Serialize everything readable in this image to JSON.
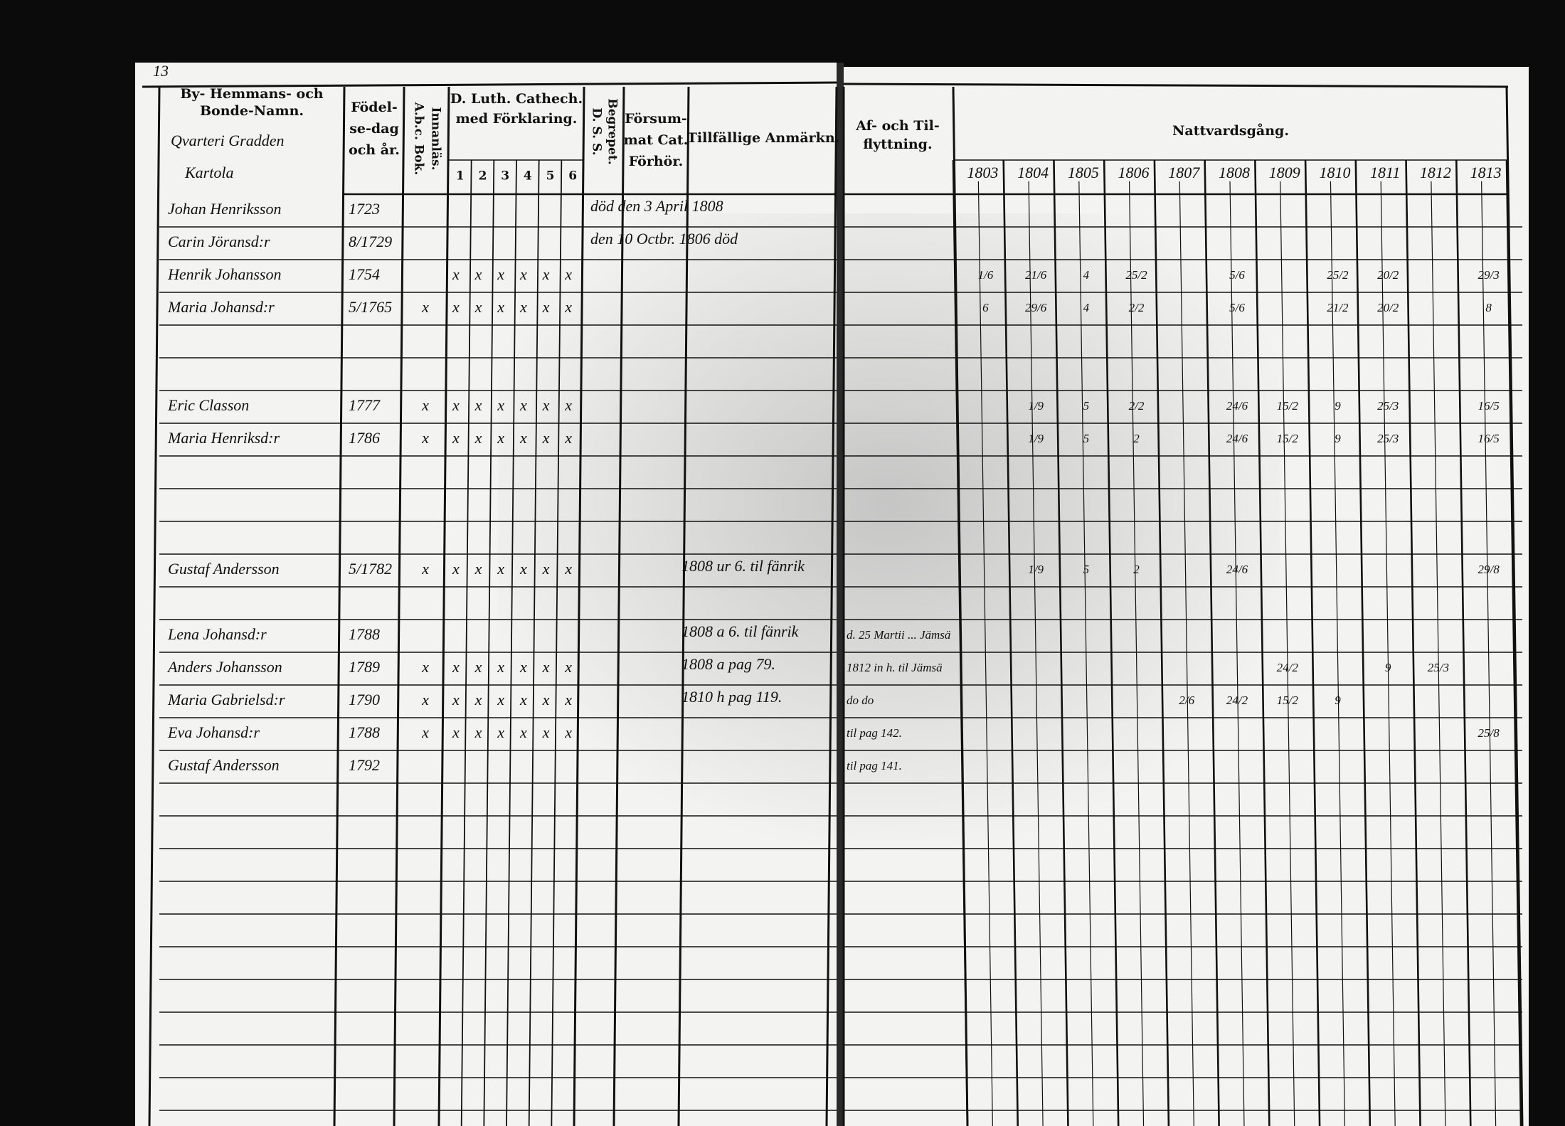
{
  "page_number": "13",
  "left_page": {
    "name_header": [
      "By- Hemmans- och",
      "Bonde-Namn."
    ],
    "birth_header": [
      "Födel-",
      "se-dag",
      "och år."
    ],
    "abc_header": [
      "A.b.c. Bok.",
      "Innanläs."
    ],
    "catechism_header": [
      "D. Luth. Cathech.",
      "med Förklaring."
    ],
    "catechism_parts": [
      "1",
      "2",
      "3",
      "4",
      "5",
      "6"
    ],
    "dss_header": [
      "D. S. S.",
      "Begrepet."
    ],
    "missed_header": [
      "Försum-",
      "mat Cat.",
      "Förhör."
    ],
    "remarks_header": "Tillfällige Anmärkn.",
    "village": "Qvarteri Gradden",
    "farm": "Kartola",
    "rows": [
      {
        "name": "Johan Henriksson",
        "born": "1723",
        "abc": "",
        "catechism": [
          "",
          "",
          "",
          "",
          "",
          ""
        ],
        "note": "död den 3 April 1808"
      },
      {
        "name": "Carin Jöransd:r",
        "born": "8/1729",
        "abc": "",
        "catechism": [
          "",
          "",
          "",
          "",
          "",
          ""
        ],
        "note": "den 10 Octbr. 1806 död"
      },
      {
        "name": "Henrik Johansson",
        "born": "1754",
        "abc": "",
        "catechism": [
          "x",
          "x",
          "x",
          "x",
          "x",
          "x"
        ],
        "note": ""
      },
      {
        "name": "Maria Johansd:r",
        "born": "5/1765",
        "abc": "x",
        "catechism": [
          "x",
          "x",
          "x",
          "x",
          "x",
          "x"
        ],
        "note": ""
      },
      {
        "name": "Eric Classon",
        "born": "1777",
        "abc": "x",
        "catechism": [
          "x",
          "x",
          "x",
          "x",
          "x",
          "x"
        ],
        "note": ""
      },
      {
        "name": "Maria Henriksd:r",
        "born": "1786",
        "abc": "x",
        "catechism": [
          "x",
          "x",
          "x",
          "x",
          "x",
          "x"
        ],
        "note": ""
      },
      {
        "name": "Gustaf Andersson",
        "born": "5/1782",
        "abc": "x",
        "catechism": [
          "x",
          "x",
          "x",
          "x",
          "x",
          "x"
        ],
        "note": "1808 ur 6. til fänrik"
      },
      {
        "name": "Lena Johansd:r",
        "born": "1788",
        "abc": "",
        "catechism": [
          "",
          "",
          "",
          "",
          "",
          ""
        ],
        "note": "1808 a 6. til fänrik"
      },
      {
        "name": "Anders Johansson",
        "born": "1789",
        "abc": "x",
        "catechism": [
          "x",
          "x",
          "x",
          "x",
          "x",
          "x"
        ],
        "note": "1808 a pag 79."
      },
      {
        "name": "Maria Gabrielsd:r",
        "born": "1790",
        "abc": "x",
        "catechism": [
          "x",
          "x",
          "x",
          "x",
          "x",
          "x"
        ],
        "note": "1810 h pag 119."
      },
      {
        "name": "Eva Johansd:r",
        "born": "1788",
        "abc": "x",
        "catechism": [
          "x",
          "x",
          "x",
          "x",
          "x",
          "x"
        ],
        "note": ""
      },
      {
        "name": "Gustaf Andersson",
        "born": "1792",
        "abc": "",
        "catechism": [
          "",
          "",
          "",
          "",
          "",
          ""
        ],
        "note": ""
      }
    ]
  },
  "right_page": {
    "moving_header": [
      "Af- och Til-",
      "flyttning."
    ],
    "communion_header": "Nattvardsgång.",
    "years": [
      "1803",
      "1804",
      "1805",
      "1806",
      "1807",
      "1808",
      "1809",
      "1810",
      "1811",
      "1812",
      "1813"
    ],
    "rows": [
      {
        "moving": "",
        "communion": [
          null,
          null,
          null,
          null,
          null,
          null,
          null,
          null,
          null,
          null,
          null
        ]
      },
      {
        "moving": "",
        "communion": [
          null,
          null,
          null,
          null,
          null,
          null,
          null,
          null,
          null,
          null,
          null
        ]
      },
      {
        "moving": "",
        "communion": [
          "1/6",
          "21/6",
          "4",
          "25/2",
          null,
          "5/6",
          null,
          "25/2",
          "20/2",
          null,
          "29/3"
        ]
      },
      {
        "moving": "",
        "communion": [
          "6",
          "29/6",
          "4",
          "2/2",
          null,
          "5/6",
          null,
          "21/2",
          "20/2",
          null,
          "8"
        ]
      },
      {
        "moving": "",
        "communion": [
          null,
          "1/9",
          "5",
          "2/2",
          null,
          "24/6",
          "15/2",
          "9",
          "25/3",
          null,
          "16/5"
        ]
      },
      {
        "moving": "",
        "communion": [
          null,
          "1/9",
          "5",
          "2",
          null,
          "24/6",
          "15/2",
          "9",
          "25/3",
          null,
          "16/5"
        ]
      },
      {
        "moving": "",
        "communion": [
          null,
          "1/9",
          "5",
          "2",
          null,
          "24/6",
          null,
          null,
          null,
          null,
          "29/8"
        ]
      },
      {
        "moving": "d. 25 Martii ... Jämsä",
        "communion": [
          null,
          null,
          null,
          null,
          null,
          null,
          null,
          null,
          null,
          null,
          null
        ]
      },
      {
        "moving": "1812 in h. til Jämsä",
        "communion": [
          null,
          null,
          null,
          null,
          null,
          null,
          "24/2",
          null,
          "9",
          "25/3",
          null
        ]
      },
      {
        "moving": "do do",
        "communion": [
          null,
          null,
          null,
          null,
          "2/6",
          "24/2",
          "15/2",
          "9",
          null,
          null,
          null
        ]
      },
      {
        "moving": "til pag 142.",
        "communion": [
          null,
          null,
          null,
          null,
          null,
          null,
          null,
          null,
          null,
          null,
          "25/8"
        ]
      },
      {
        "moving": "til pag 141.",
        "communion": [
          null,
          null,
          null,
          null,
          null,
          null,
          null,
          null,
          null,
          null,
          null
        ]
      }
    ]
  }
}
